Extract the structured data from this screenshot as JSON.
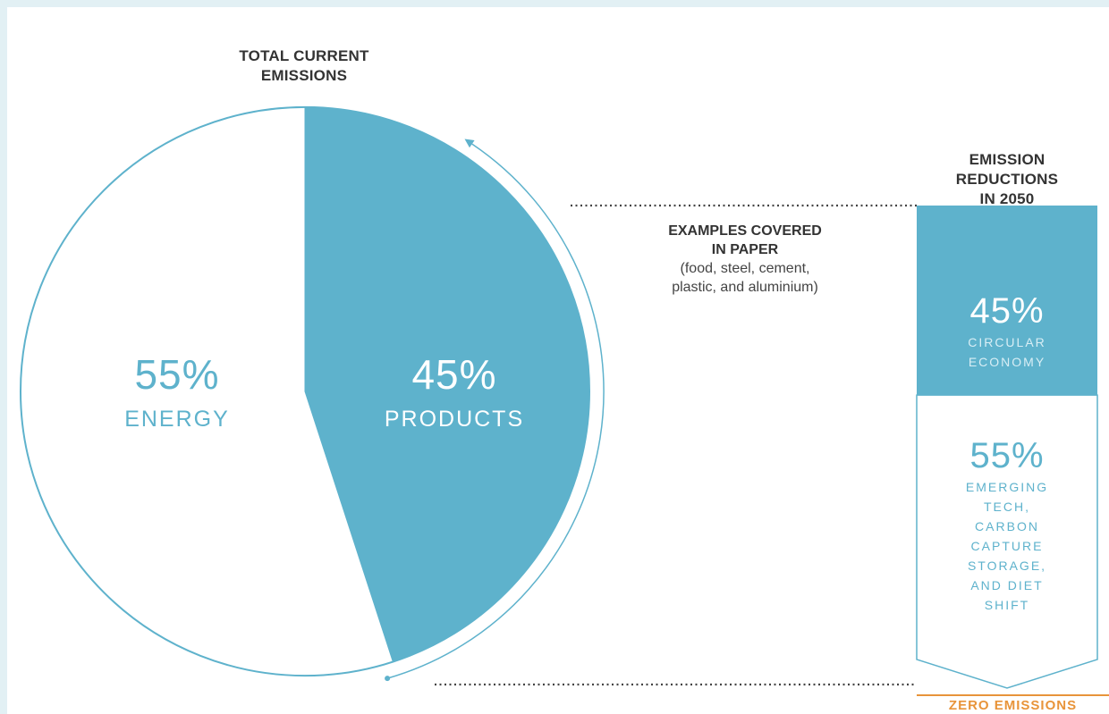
{
  "colors": {
    "accent": "#5eb2cc",
    "energy_text": "#5eb2cc",
    "products_text": "#ffffff",
    "zero_emissions": "#e8943a",
    "dots": "#444444",
    "background": "#e2f0f4"
  },
  "chart_data": {
    "type": "pie",
    "title": "TOTAL CURRENT\nEMISSIONS",
    "slices": [
      {
        "label": "PRODUCTS",
        "value": 45,
        "display": "45%"
      },
      {
        "label": "ENERGY",
        "value": 55,
        "display": "55%"
      }
    ]
  },
  "annotation": {
    "line1": "EXAMPLES COVERED",
    "line2": "IN PAPER",
    "line3": "(food, steel, cement,",
    "line4": "plastic, and aluminium)"
  },
  "reductions": {
    "title": "EMISSION\nREDUCTIONS\nIN 2050",
    "segments": [
      {
        "value": 45,
        "display": "45%",
        "label": "CIRCULAR\nECONOMY"
      },
      {
        "value": 55,
        "display": "55%",
        "label": "EMERGING\nTECH,\nCARBON\nCAPTURE\nSTORAGE,\nAND DIET\nSHIFT"
      }
    ],
    "bottom_label": "ZERO EMISSIONS"
  }
}
